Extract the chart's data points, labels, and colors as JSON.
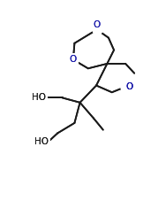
{
  "bg_color": "#ffffff",
  "line_color": "#1a1a1a",
  "o_color": "#1a1aaa",
  "line_width": 1.3,
  "font_size": 7.5,
  "bonds": [
    [
      [
        113,
        8
      ],
      [
        130,
        20
      ]
    ],
    [
      [
        130,
        20
      ],
      [
        138,
        38
      ]
    ],
    [
      [
        138,
        38
      ],
      [
        128,
        58
      ]
    ],
    [
      [
        128,
        58
      ],
      [
        100,
        65
      ]
    ],
    [
      [
        100,
        65
      ],
      [
        78,
        52
      ]
    ],
    [
      [
        78,
        52
      ],
      [
        80,
        28
      ]
    ],
    [
      [
        80,
        28
      ],
      [
        113,
        8
      ]
    ],
    [
      [
        128,
        58
      ],
      [
        155,
        58
      ]
    ],
    [
      [
        155,
        58
      ],
      [
        168,
        72
      ]
    ],
    [
      [
        128,
        58
      ],
      [
        112,
        90
      ]
    ],
    [
      [
        112,
        90
      ],
      [
        135,
        100
      ]
    ],
    [
      [
        135,
        100
      ],
      [
        155,
        92
      ]
    ],
    [
      [
        112,
        90
      ],
      [
        88,
        115
      ]
    ],
    [
      [
        88,
        115
      ],
      [
        62,
        108
      ]
    ],
    [
      [
        62,
        108
      ],
      [
        38,
        108
      ]
    ],
    [
      [
        88,
        115
      ],
      [
        80,
        145
      ]
    ],
    [
      [
        80,
        145
      ],
      [
        55,
        160
      ]
    ],
    [
      [
        55,
        160
      ],
      [
        42,
        172
      ]
    ],
    [
      [
        88,
        115
      ],
      [
        108,
        138
      ]
    ],
    [
      [
        108,
        138
      ],
      [
        122,
        155
      ]
    ]
  ],
  "o_texts": [
    [
      113,
      8,
      "O",
      "center",
      "bottom"
    ],
    [
      78,
      52,
      "O",
      "center",
      "center"
    ],
    [
      155,
      92,
      "O",
      "left",
      "center"
    ]
  ],
  "ho_texts": [
    [
      38,
      108,
      "HO",
      "right",
      "center"
    ],
    [
      42,
      172,
      "HO",
      "right",
      "center"
    ]
  ],
  "gap_bonds": [
    [
      [
        100,
        65
      ],
      [
        78,
        52
      ]
    ]
  ]
}
